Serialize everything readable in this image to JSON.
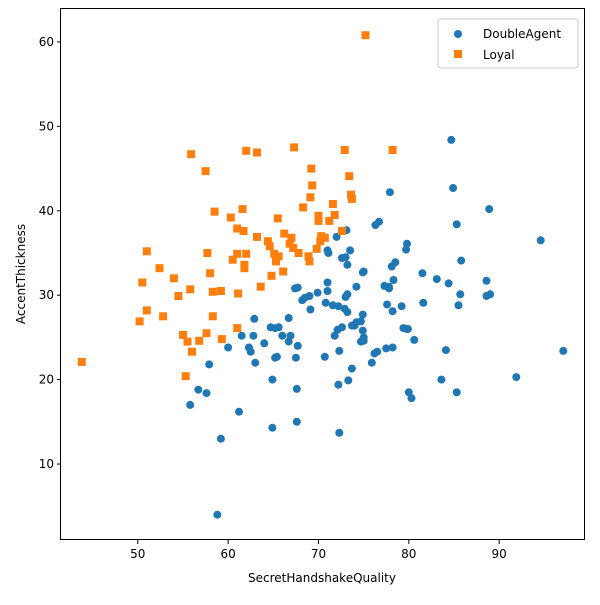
{
  "chart_data": {
    "type": "scatter",
    "title": "",
    "xlabel": "SecretHandshakeQuality",
    "ylabel": "AccentThickness",
    "xlim": [
      41.5,
      99.5
    ],
    "ylim": [
      1.0,
      63.9
    ],
    "xticks": [
      50,
      60,
      70,
      80,
      90
    ],
    "yticks": [
      10,
      20,
      30,
      40,
      50,
      60
    ],
    "grid": false,
    "legend_position": "upper right",
    "series": [
      {
        "name": "DoubleAgent",
        "marker": "circle",
        "color": "#1f77b4",
        "points": [
          [
            84.7,
            48.4
          ],
          [
            84.9,
            42.7
          ],
          [
            77.9,
            42.2
          ],
          [
            88.9,
            40.2
          ],
          [
            94.6,
            36.5
          ],
          [
            97.1,
            23.4
          ],
          [
            91.9,
            20.3
          ],
          [
            85.3,
            18.5
          ],
          [
            76.7,
            38.7
          ],
          [
            76.3,
            38.3
          ],
          [
            85.3,
            38.4
          ],
          [
            79.8,
            36.1
          ],
          [
            79.7,
            35.4
          ],
          [
            85.8,
            34.1
          ],
          [
            78.5,
            33.9
          ],
          [
            78.1,
            33.4
          ],
          [
            81.5,
            32.6
          ],
          [
            84.4,
            31.4
          ],
          [
            83.1,
            31.9
          ],
          [
            78.3,
            31.8
          ],
          [
            77.3,
            31.1
          ],
          [
            77.8,
            30.8
          ],
          [
            88.6,
            31.7
          ],
          [
            85.7,
            30.1
          ],
          [
            88.6,
            29.9
          ],
          [
            89.0,
            30.1
          ],
          [
            85.5,
            28.8
          ],
          [
            81.6,
            29.1
          ],
          [
            77.6,
            28.9
          ],
          [
            79.2,
            28.7
          ],
          [
            78.2,
            28.1
          ],
          [
            79.4,
            26.1
          ],
          [
            79.9,
            26.0
          ],
          [
            80.6,
            24.7
          ],
          [
            78.2,
            23.8
          ],
          [
            77.5,
            23.7
          ],
          [
            76.5,
            23.3
          ],
          [
            76.2,
            23.1
          ],
          [
            84.1,
            23.5
          ],
          [
            83.6,
            20.0
          ],
          [
            80.0,
            18.5
          ],
          [
            80.3,
            17.8
          ],
          [
            75.9,
            22.0
          ],
          [
            73.1,
            37.7
          ],
          [
            72.0,
            36.9
          ],
          [
            73.5,
            35.3
          ],
          [
            72.6,
            34.4
          ],
          [
            73.2,
            33.6
          ],
          [
            75.0,
            32.8
          ],
          [
            74.9,
            32.7
          ],
          [
            74.2,
            31.0
          ],
          [
            71.0,
            31.5
          ],
          [
            71.0,
            30.5
          ],
          [
            73.0,
            29.8
          ],
          [
            73.2,
            30.1
          ],
          [
            70.8,
            29.1
          ],
          [
            71.6,
            28.8
          ],
          [
            72.2,
            28.7
          ],
          [
            72.9,
            28.4
          ],
          [
            73.2,
            28.0
          ],
          [
            74.9,
            27.7
          ],
          [
            74.2,
            26.8
          ],
          [
            73.7,
            26.4
          ],
          [
            72.6,
            26.2
          ],
          [
            72.1,
            25.9
          ],
          [
            71.8,
            25.2
          ],
          [
            74.9,
            25.8
          ],
          [
            75.0,
            25.0
          ],
          [
            75.0,
            24.6
          ],
          [
            74.7,
            24.5
          ],
          [
            73.7,
            21.3
          ],
          [
            72.3,
            23.4
          ],
          [
            70.7,
            22.7
          ],
          [
            72.2,
            19.4
          ],
          [
            73.3,
            19.9
          ],
          [
            72.3,
            13.7
          ],
          [
            69.9,
            30.3
          ],
          [
            69.0,
            29.9
          ],
          [
            68.2,
            29.4
          ],
          [
            68.5,
            29.7
          ],
          [
            69.1,
            28.3
          ],
          [
            67.7,
            30.9
          ],
          [
            67.4,
            30.8
          ],
          [
            66.7,
            27.3
          ],
          [
            67.5,
            22.6
          ],
          [
            67.7,
            24.0
          ],
          [
            66.7,
            24.5
          ],
          [
            66.9,
            25.2
          ],
          [
            66.0,
            25.2
          ],
          [
            65.2,
            26.1
          ],
          [
            65.6,
            26.2
          ],
          [
            64.7,
            26.2
          ],
          [
            65.4,
            22.7
          ],
          [
            65.2,
            22.6
          ],
          [
            62.5,
            23.3
          ],
          [
            62.3,
            23.8
          ],
          [
            64.0,
            24.3
          ],
          [
            63.0,
            22.0
          ],
          [
            62.9,
            27.2
          ],
          [
            61.5,
            25.2
          ],
          [
            62.8,
            25.2
          ],
          [
            60.0,
            23.8
          ],
          [
            57.9,
            21.8
          ],
          [
            56.7,
            18.8
          ],
          [
            57.6,
            18.4
          ],
          [
            55.8,
            17.0
          ],
          [
            61.2,
            16.2
          ],
          [
            59.2,
            13.0
          ],
          [
            64.9,
            20.0
          ],
          [
            67.6,
            18.9
          ],
          [
            64.9,
            14.3
          ],
          [
            67.6,
            15.0
          ],
          [
            58.8,
            4.0
          ],
          [
            71.0,
            35.3
          ],
          [
            71.1,
            35.0
          ],
          [
            73.0,
            34.5
          ],
          [
            74.0,
            26.4
          ],
          [
            74.7,
            26.9
          ],
          [
            79.8,
            26.0
          ],
          [
            77.8,
            31.0
          ]
        ]
      },
      {
        "name": "Loyal",
        "marker": "square",
        "color": "#ff7f0e",
        "points": [
          [
            75.2,
            60.8
          ],
          [
            67.3,
            47.5
          ],
          [
            72.9,
            47.2
          ],
          [
            78.2,
            47.2
          ],
          [
            62.0,
            47.1
          ],
          [
            63.2,
            46.9
          ],
          [
            55.9,
            46.7
          ],
          [
            57.5,
            44.7
          ],
          [
            69.2,
            45.0
          ],
          [
            73.4,
            44.1
          ],
          [
            69.3,
            43.0
          ],
          [
            73.6,
            41.9
          ],
          [
            73.7,
            41.4
          ],
          [
            69.1,
            41.6
          ],
          [
            71.6,
            40.8
          ],
          [
            68.3,
            40.4
          ],
          [
            58.5,
            39.9
          ],
          [
            61.6,
            40.2
          ],
          [
            71.8,
            39.5
          ],
          [
            71.2,
            38.8
          ],
          [
            70.0,
            39.4
          ],
          [
            70.0,
            38.8
          ],
          [
            60.3,
            39.2
          ],
          [
            61.0,
            37.9
          ],
          [
            61.7,
            37.6
          ],
          [
            65.5,
            39.1
          ],
          [
            66.2,
            37.3
          ],
          [
            67.0,
            36.8
          ],
          [
            66.8,
            36.1
          ],
          [
            67.2,
            35.6
          ],
          [
            69.8,
            35.5
          ],
          [
            70.7,
            36.8
          ],
          [
            70.2,
            36.4
          ],
          [
            70.3,
            37.0
          ],
          [
            72.6,
            37.6
          ],
          [
            63.2,
            36.9
          ],
          [
            64.4,
            36.4
          ],
          [
            64.6,
            35.8
          ],
          [
            61.0,
            34.9
          ],
          [
            62.0,
            34.9
          ],
          [
            61.8,
            33.6
          ],
          [
            61.8,
            33.2
          ],
          [
            60.5,
            34.2
          ],
          [
            57.7,
            35.0
          ],
          [
            65.1,
            34.9
          ],
          [
            65.6,
            34.6
          ],
          [
            65.3,
            34.0
          ],
          [
            67.8,
            35.0
          ],
          [
            68.9,
            34.6
          ],
          [
            69.0,
            34.0
          ],
          [
            66.1,
            32.8
          ],
          [
            64.8,
            32.3
          ],
          [
            63.6,
            31.0
          ],
          [
            61.1,
            30.2
          ],
          [
            59.2,
            30.5
          ],
          [
            58.3,
            30.4
          ],
          [
            58.0,
            32.6
          ],
          [
            54.0,
            32.0
          ],
          [
            52.4,
            33.2
          ],
          [
            51.0,
            35.2
          ],
          [
            55.8,
            30.7
          ],
          [
            54.5,
            29.9
          ],
          [
            50.5,
            31.5
          ],
          [
            51.0,
            28.2
          ],
          [
            52.8,
            27.5
          ],
          [
            50.2,
            26.9
          ],
          [
            58.3,
            27.5
          ],
          [
            57.6,
            25.5
          ],
          [
            56.8,
            24.6
          ],
          [
            59.3,
            24.8
          ],
          [
            55.5,
            24.5
          ],
          [
            55.0,
            25.3
          ],
          [
            56.0,
            23.3
          ],
          [
            61.0,
            26.1
          ],
          [
            55.3,
            20.4
          ],
          [
            43.8,
            22.1
          ]
        ]
      }
    ]
  }
}
